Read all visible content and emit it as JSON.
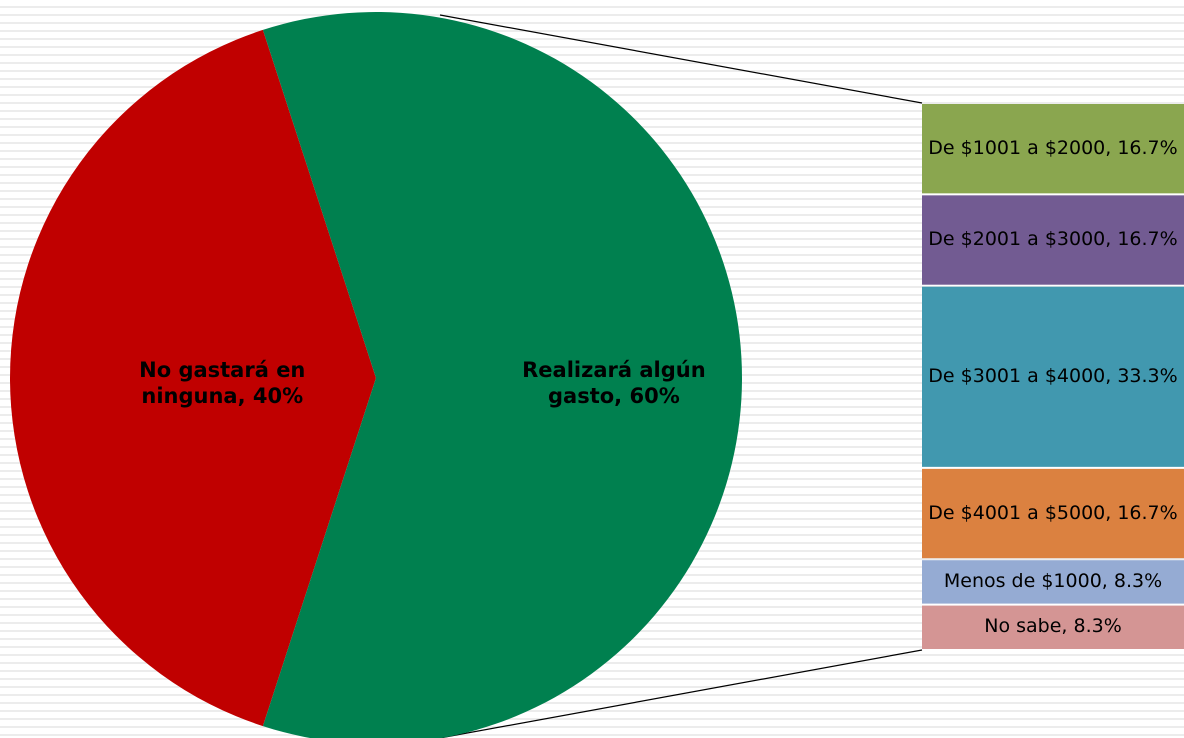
{
  "chart_data": [
    {
      "type": "pie",
      "values": [
        40,
        60
      ],
      "value_labels": [
        "No gastará en ninguna, 40%",
        "Realizará algún gasto, 60%"
      ],
      "colors": [
        "#c00000",
        "#00804f"
      ]
    },
    {
      "type": "stacked-bar",
      "values": [
        16.7,
        16.7,
        33.3,
        16.7,
        8.3,
        8.3
      ],
      "value_labels": [
        "De $1001 a $2000, 16.7%",
        "De $2001 a $3000, 16.7%",
        "De $3001 a $4000, 33.3%",
        "De $4001 a $5000, 16.7%",
        "Menos de $1000, 8.3%",
        "No sabe, 8.3%"
      ],
      "colors": [
        "#8aa64f",
        "#725b92",
        "#4198af",
        "#db8140",
        "#95abd3",
        "#d49594"
      ]
    }
  ]
}
